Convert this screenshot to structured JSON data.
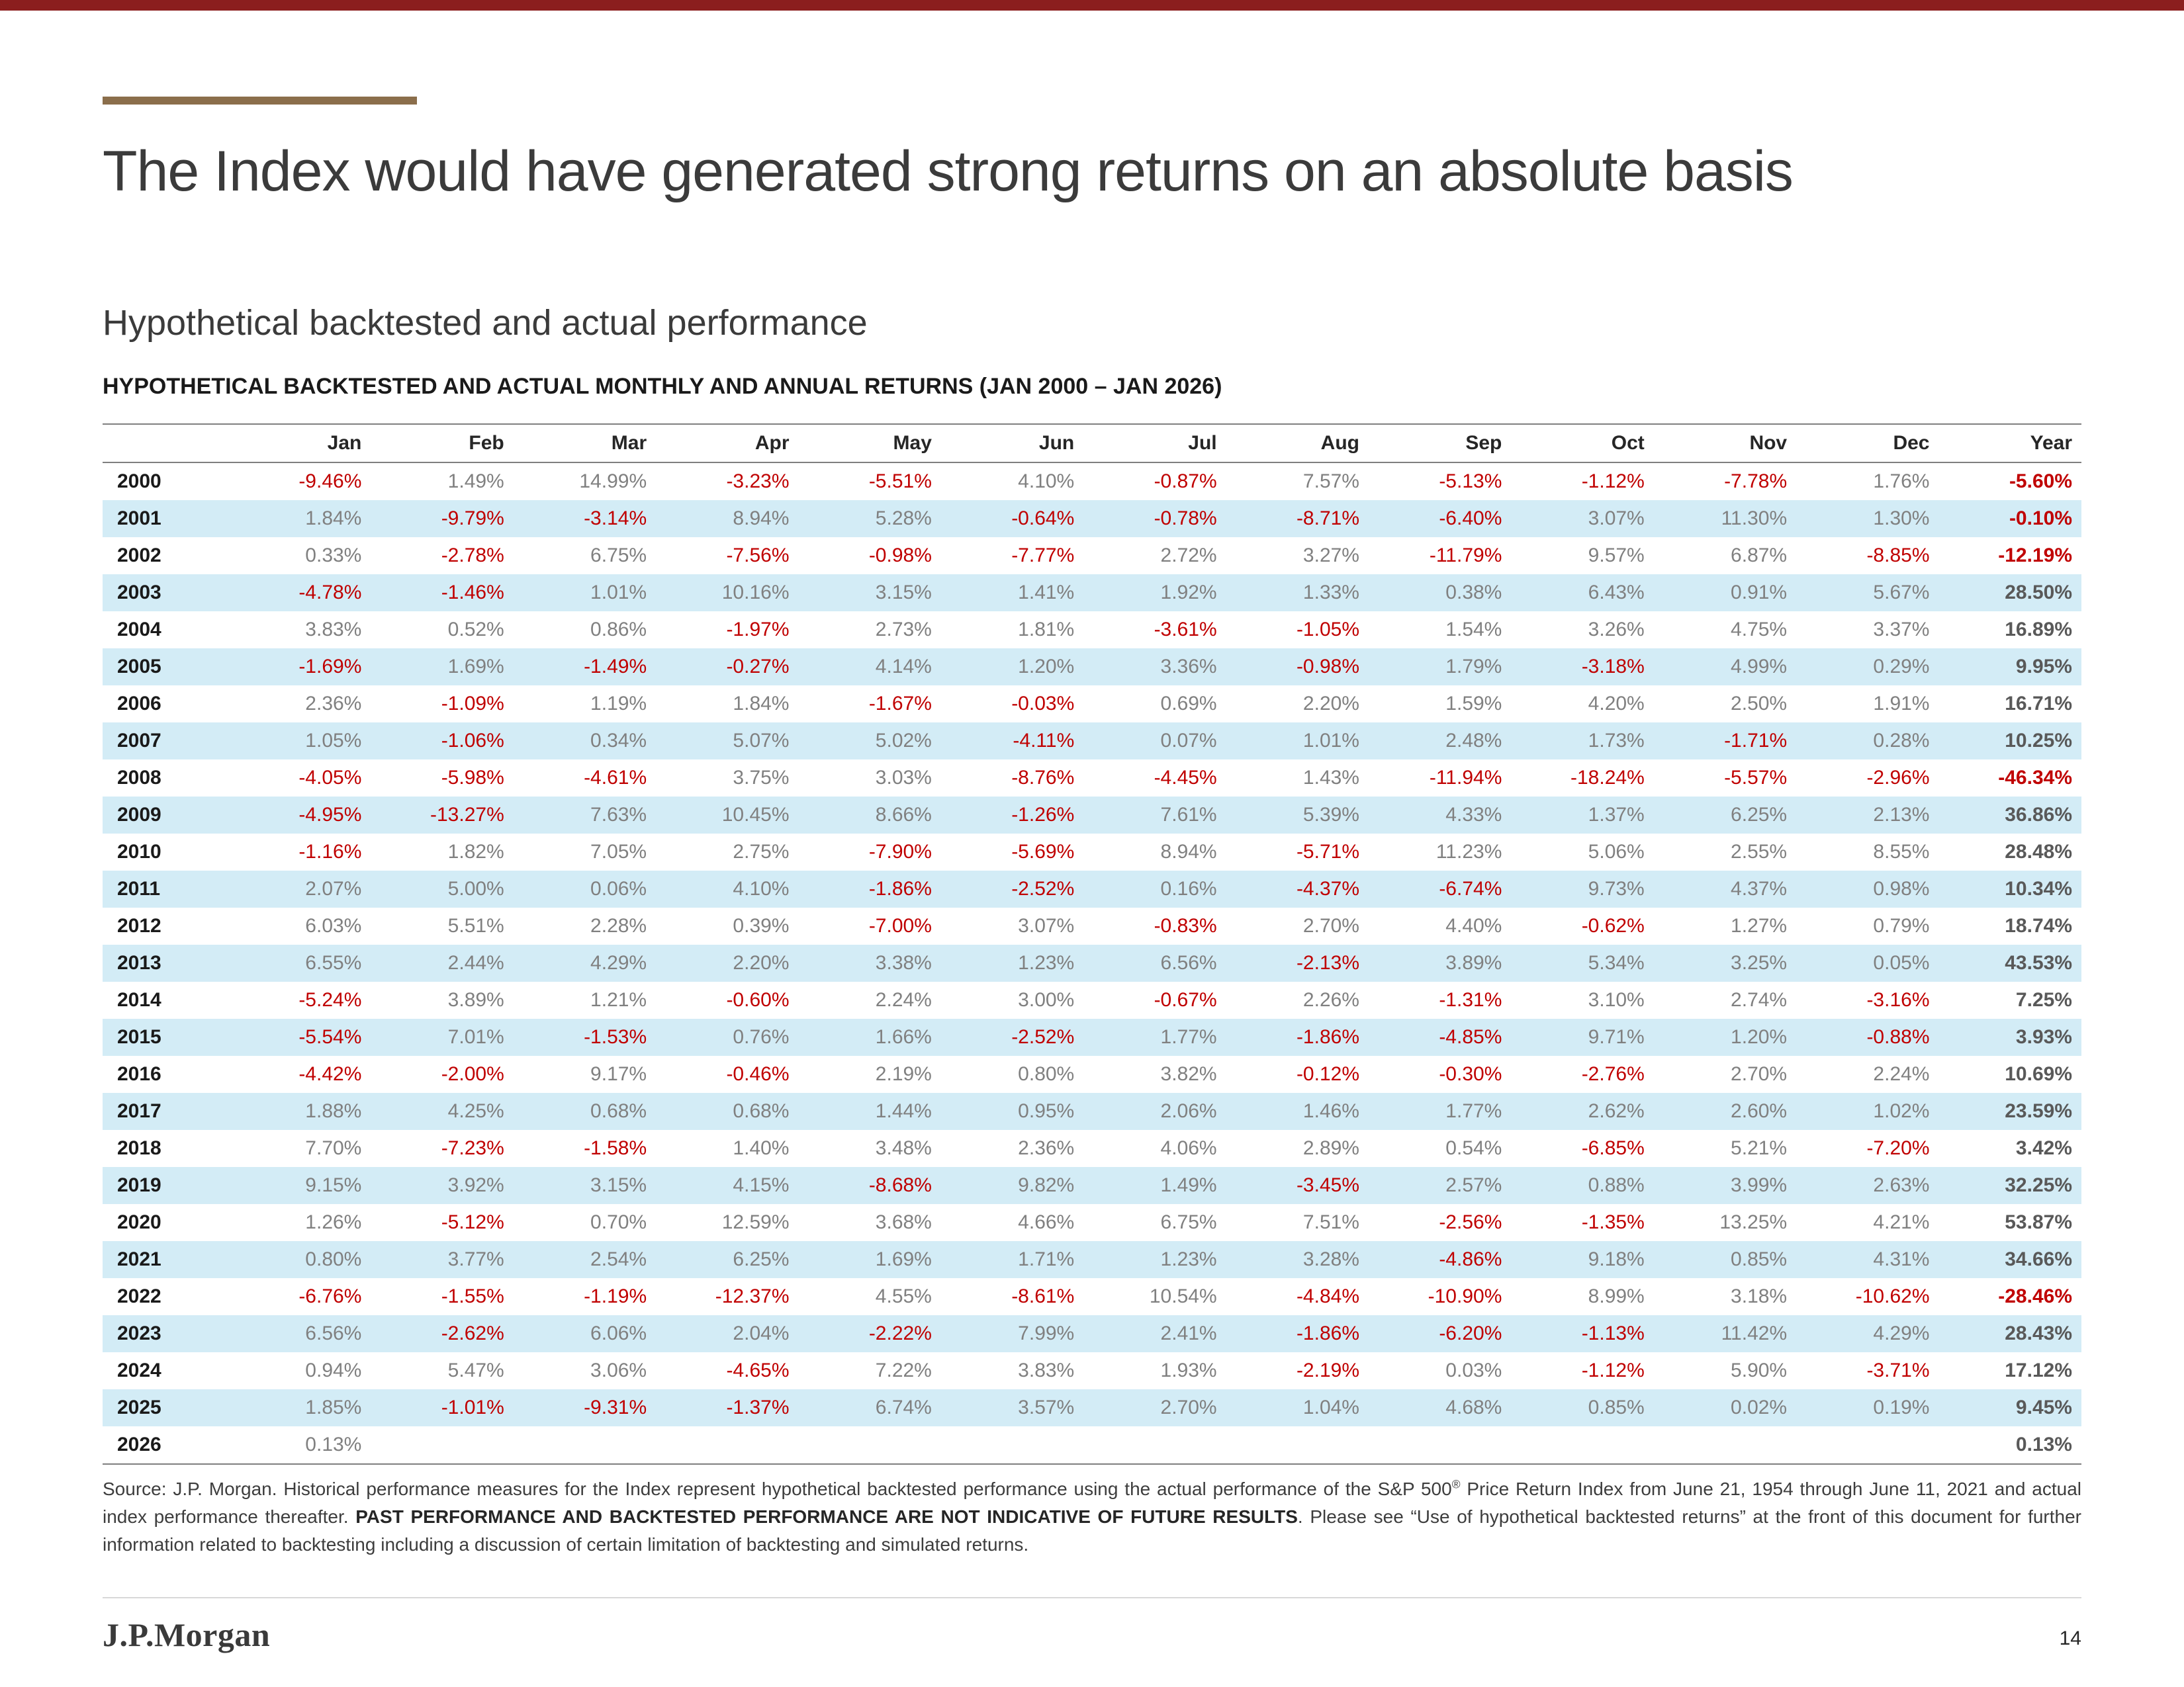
{
  "page": {
    "title": "The Index would have generated strong returns on an absolute basis",
    "subtitle": "Hypothetical backtested and actual performance",
    "table_heading": "HYPOTHETICAL BACKTESTED AND ACTUAL MONTHLY AND ANNUAL RETURNS (JAN 2000 – JAN 2026)",
    "logo": "J.P.Morgan",
    "page_number": "14"
  },
  "colors": {
    "top_strip": "#8b1e1e",
    "accent_bar": "#8b6e4b",
    "negative": "#c00000",
    "positive_text": "#808080",
    "row_stripe": "#d3ecf6"
  },
  "table": {
    "columns": [
      "Jan",
      "Feb",
      "Mar",
      "Apr",
      "May",
      "Jun",
      "Jul",
      "Aug",
      "Sep",
      "Oct",
      "Nov",
      "Dec",
      "Year"
    ],
    "rows": [
      {
        "year": "2000",
        "values": [
          "-9.46%",
          "1.49%",
          "14.99%",
          "-3.23%",
          "-5.51%",
          "4.10%",
          "-0.87%",
          "7.57%",
          "-5.13%",
          "-1.12%",
          "-7.78%",
          "1.76%",
          "-5.60%"
        ]
      },
      {
        "year": "2001",
        "values": [
          "1.84%",
          "-9.79%",
          "-3.14%",
          "8.94%",
          "5.28%",
          "-0.64%",
          "-0.78%",
          "-8.71%",
          "-6.40%",
          "3.07%",
          "11.30%",
          "1.30%",
          "-0.10%"
        ]
      },
      {
        "year": "2002",
        "values": [
          "0.33%",
          "-2.78%",
          "6.75%",
          "-7.56%",
          "-0.98%",
          "-7.77%",
          "2.72%",
          "3.27%",
          "-11.79%",
          "9.57%",
          "6.87%",
          "-8.85%",
          "-12.19%"
        ]
      },
      {
        "year": "2003",
        "values": [
          "-4.78%",
          "-1.46%",
          "1.01%",
          "10.16%",
          "3.15%",
          "1.41%",
          "1.92%",
          "1.33%",
          "0.38%",
          "6.43%",
          "0.91%",
          "5.67%",
          "28.50%"
        ]
      },
      {
        "year": "2004",
        "values": [
          "3.83%",
          "0.52%",
          "0.86%",
          "-1.97%",
          "2.73%",
          "1.81%",
          "-3.61%",
          "-1.05%",
          "1.54%",
          "3.26%",
          "4.75%",
          "3.37%",
          "16.89%"
        ]
      },
      {
        "year": "2005",
        "values": [
          "-1.69%",
          "1.69%",
          "-1.49%",
          "-0.27%",
          "4.14%",
          "1.20%",
          "3.36%",
          "-0.98%",
          "1.79%",
          "-3.18%",
          "4.99%",
          "0.29%",
          "9.95%"
        ]
      },
      {
        "year": "2006",
        "values": [
          "2.36%",
          "-1.09%",
          "1.19%",
          "1.84%",
          "-1.67%",
          "-0.03%",
          "0.69%",
          "2.20%",
          "1.59%",
          "4.20%",
          "2.50%",
          "1.91%",
          "16.71%"
        ]
      },
      {
        "year": "2007",
        "values": [
          "1.05%",
          "-1.06%",
          "0.34%",
          "5.07%",
          "5.02%",
          "-4.11%",
          "0.07%",
          "1.01%",
          "2.48%",
          "1.73%",
          "-1.71%",
          "0.28%",
          "10.25%"
        ]
      },
      {
        "year": "2008",
        "values": [
          "-4.05%",
          "-5.98%",
          "-4.61%",
          "3.75%",
          "3.03%",
          "-8.76%",
          "-4.45%",
          "1.43%",
          "-11.94%",
          "-18.24%",
          "-5.57%",
          "-2.96%",
          "-46.34%"
        ]
      },
      {
        "year": "2009",
        "values": [
          "-4.95%",
          "-13.27%",
          "7.63%",
          "10.45%",
          "8.66%",
          "-1.26%",
          "7.61%",
          "5.39%",
          "4.33%",
          "1.37%",
          "6.25%",
          "2.13%",
          "36.86%"
        ]
      },
      {
        "year": "2010",
        "values": [
          "-1.16%",
          "1.82%",
          "7.05%",
          "2.75%",
          "-7.90%",
          "-5.69%",
          "8.94%",
          "-5.71%",
          "11.23%",
          "5.06%",
          "2.55%",
          "8.55%",
          "28.48%"
        ]
      },
      {
        "year": "2011",
        "values": [
          "2.07%",
          "5.00%",
          "0.06%",
          "4.10%",
          "-1.86%",
          "-2.52%",
          "0.16%",
          "-4.37%",
          "-6.74%",
          "9.73%",
          "4.37%",
          "0.98%",
          "10.34%"
        ]
      },
      {
        "year": "2012",
        "values": [
          "6.03%",
          "5.51%",
          "2.28%",
          "0.39%",
          "-7.00%",
          "3.07%",
          "-0.83%",
          "2.70%",
          "4.40%",
          "-0.62%",
          "1.27%",
          "0.79%",
          "18.74%"
        ]
      },
      {
        "year": "2013",
        "values": [
          "6.55%",
          "2.44%",
          "4.29%",
          "2.20%",
          "3.38%",
          "1.23%",
          "6.56%",
          "-2.13%",
          "3.89%",
          "5.34%",
          "3.25%",
          "0.05%",
          "43.53%"
        ]
      },
      {
        "year": "2014",
        "values": [
          "-5.24%",
          "3.89%",
          "1.21%",
          "-0.60%",
          "2.24%",
          "3.00%",
          "-0.67%",
          "2.26%",
          "-1.31%",
          "3.10%",
          "2.74%",
          "-3.16%",
          "7.25%"
        ]
      },
      {
        "year": "2015",
        "values": [
          "-5.54%",
          "7.01%",
          "-1.53%",
          "0.76%",
          "1.66%",
          "-2.52%",
          "1.77%",
          "-1.86%",
          "-4.85%",
          "9.71%",
          "1.20%",
          "-0.88%",
          "3.93%"
        ]
      },
      {
        "year": "2016",
        "values": [
          "-4.42%",
          "-2.00%",
          "9.17%",
          "-0.46%",
          "2.19%",
          "0.80%",
          "3.82%",
          "-0.12%",
          "-0.30%",
          "-2.76%",
          "2.70%",
          "2.24%",
          "10.69%"
        ]
      },
      {
        "year": "2017",
        "values": [
          "1.88%",
          "4.25%",
          "0.68%",
          "0.68%",
          "1.44%",
          "0.95%",
          "2.06%",
          "1.46%",
          "1.77%",
          "2.62%",
          "2.60%",
          "1.02%",
          "23.59%"
        ]
      },
      {
        "year": "2018",
        "values": [
          "7.70%",
          "-7.23%",
          "-1.58%",
          "1.40%",
          "3.48%",
          "2.36%",
          "4.06%",
          "2.89%",
          "0.54%",
          "-6.85%",
          "5.21%",
          "-7.20%",
          "3.42%"
        ]
      },
      {
        "year": "2019",
        "values": [
          "9.15%",
          "3.92%",
          "3.15%",
          "4.15%",
          "-8.68%",
          "9.82%",
          "1.49%",
          "-3.45%",
          "2.57%",
          "0.88%",
          "3.99%",
          "2.63%",
          "32.25%"
        ]
      },
      {
        "year": "2020",
        "values": [
          "1.26%",
          "-5.12%",
          "0.70%",
          "12.59%",
          "3.68%",
          "4.66%",
          "6.75%",
          "7.51%",
          "-2.56%",
          "-1.35%",
          "13.25%",
          "4.21%",
          "53.87%"
        ]
      },
      {
        "year": "2021",
        "values": [
          "0.80%",
          "3.77%",
          "2.54%",
          "6.25%",
          "1.69%",
          "1.71%",
          "1.23%",
          "3.28%",
          "-4.86%",
          "9.18%",
          "0.85%",
          "4.31%",
          "34.66%"
        ]
      },
      {
        "year": "2022",
        "values": [
          "-6.76%",
          "-1.55%",
          "-1.19%",
          "-12.37%",
          "4.55%",
          "-8.61%",
          "10.54%",
          "-4.84%",
          "-10.90%",
          "8.99%",
          "3.18%",
          "-10.62%",
          "-28.46%"
        ]
      },
      {
        "year": "2023",
        "values": [
          "6.56%",
          "-2.62%",
          "6.06%",
          "2.04%",
          "-2.22%",
          "7.99%",
          "2.41%",
          "-1.86%",
          "-6.20%",
          "-1.13%",
          "11.42%",
          "4.29%",
          "28.43%"
        ]
      },
      {
        "year": "2024",
        "values": [
          "0.94%",
          "5.47%",
          "3.06%",
          "-4.65%",
          "7.22%",
          "3.83%",
          "1.93%",
          "-2.19%",
          "0.03%",
          "-1.12%",
          "5.90%",
          "-3.71%",
          "17.12%"
        ]
      },
      {
        "year": "2025",
        "values": [
          "1.85%",
          "-1.01%",
          "-9.31%",
          "-1.37%",
          "6.74%",
          "3.57%",
          "2.70%",
          "1.04%",
          "4.68%",
          "0.85%",
          "0.02%",
          "0.19%",
          "9.45%"
        ]
      },
      {
        "year": "2026",
        "values": [
          "0.13%",
          "",
          "",
          "",
          "",
          "",
          "",
          "",
          "",
          "",
          "",
          "",
          "0.13%"
        ]
      }
    ]
  },
  "footnote": {
    "part1": "Source: J.P. Morgan. Historical performance measures for the Index represent hypothetical backtested performance using the actual performance of the S&P 500",
    "sup": "®",
    "part2": " Price Return Index from June 21, 1954 through June 11, 2021 and actual index performance thereafter. ",
    "bold": "PAST PERFORMANCE AND BACKTESTED PERFORMANCE ARE NOT INDICATIVE OF FUTURE RESULTS",
    "part3": ". Please see “Use of hypothetical backtested returns” at the front of this document for further information related to backtesting including a discussion of certain limitation of backtesting and simulated returns."
  }
}
